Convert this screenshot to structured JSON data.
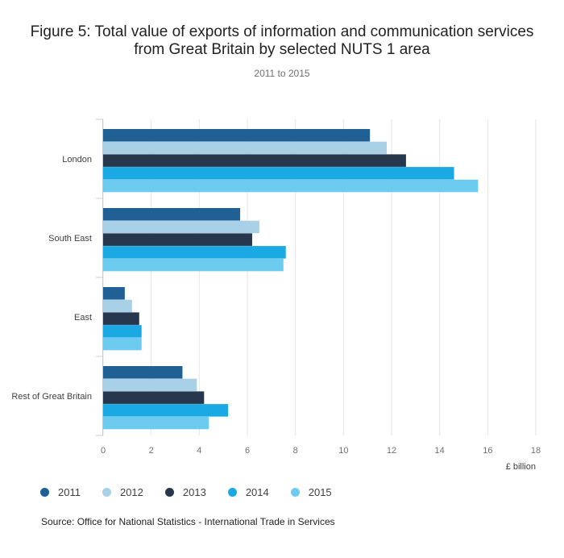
{
  "title_line1": "Figure 5: Total value of exports of information and communication services",
  "title_line2": "from Great Britain by selected NUTS 1 area",
  "subtitle": "2011 to 2015",
  "source": "Source: Office for National Statistics - International Trade in Services",
  "chart_data": {
    "type": "bar",
    "orientation": "horizontal",
    "title": "Figure 5: Total value of exports of information and communication services from Great Britain by selected NUTS 1 area",
    "subtitle": "2011 to 2015",
    "xlabel": "£ billion",
    "ylabel": "",
    "categories": [
      "London",
      "South East",
      "East",
      "Rest of Great Britain"
    ],
    "xlim": [
      0,
      18
    ],
    "xticks": [
      "0",
      "2",
      "4",
      "6",
      "8",
      "10",
      "12",
      "14",
      "16",
      "18"
    ],
    "grid": true,
    "legend_position": "bottom-left",
    "series": [
      {
        "name": "2011",
        "color": "#206095",
        "values": [
          11.1,
          5.7,
          0.9,
          3.3
        ]
      },
      {
        "name": "2012",
        "color": "#a8d0e6",
        "values": [
          11.8,
          6.5,
          1.2,
          3.9
        ]
      },
      {
        "name": "2013",
        "color": "#27374d",
        "values": [
          12.6,
          6.2,
          1.5,
          4.2
        ]
      },
      {
        "name": "2014",
        "color": "#1ba9e4",
        "values": [
          14.6,
          7.6,
          1.6,
          5.2
        ]
      },
      {
        "name": "2015",
        "color": "#6ecbf0",
        "values": [
          15.6,
          7.5,
          1.6,
          4.4
        ]
      }
    ]
  }
}
